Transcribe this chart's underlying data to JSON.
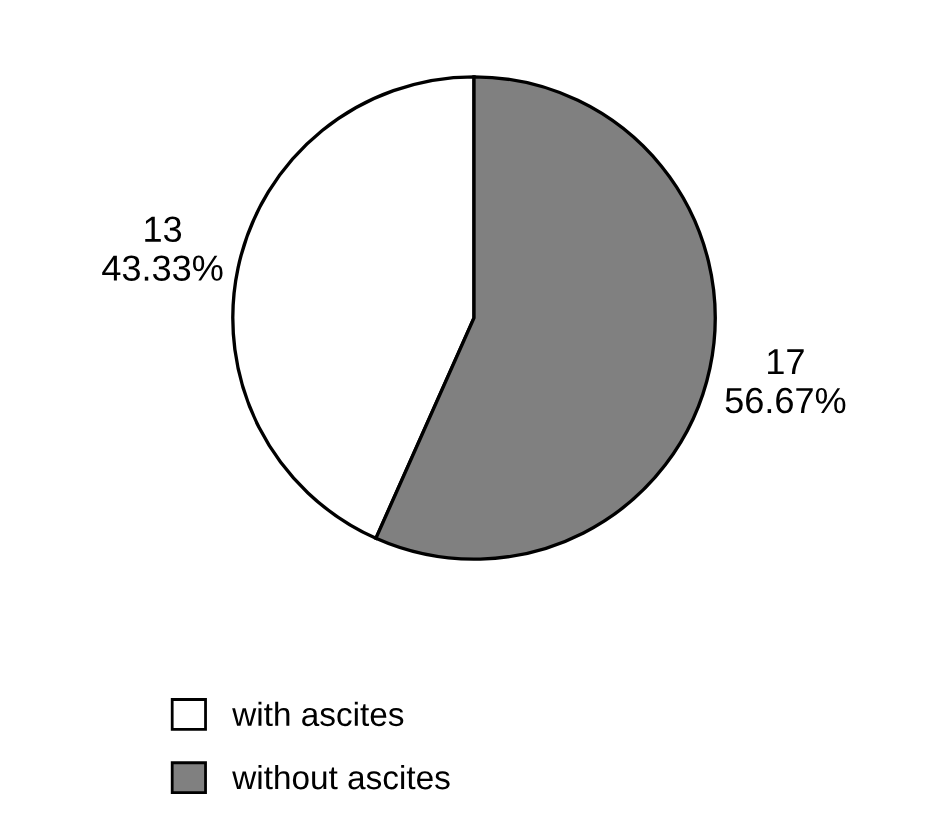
{
  "chart_data": {
    "type": "pie",
    "categories": [
      "with ascites",
      "without ascites"
    ],
    "values": [
      13,
      17
    ],
    "colors": [
      "#ffffff",
      "#808080"
    ],
    "value_labels": [
      "13\n43.33%",
      "17\n56.67%"
    ],
    "legend": "bottom"
  }
}
